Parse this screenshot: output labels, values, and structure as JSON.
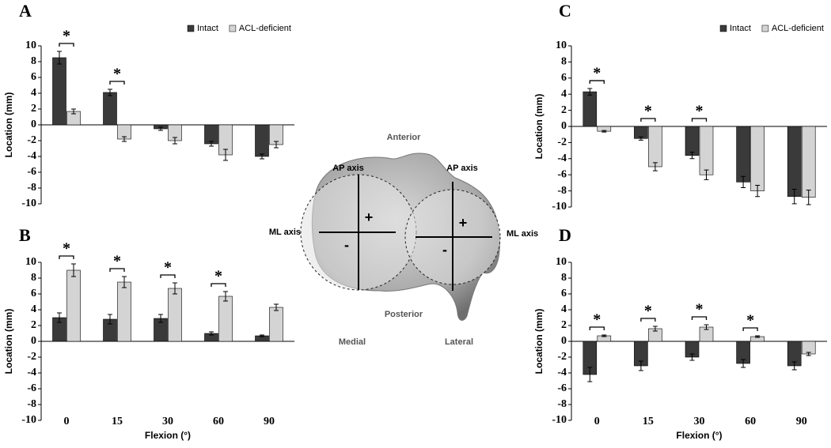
{
  "chart_data": [
    {
      "type": "bar",
      "label": "A",
      "ylabel": "Location (mm)",
      "ylim": [
        -10,
        10
      ],
      "yticks": [
        -10,
        -8,
        -6,
        -4,
        -2,
        0,
        2,
        4,
        6,
        8,
        10
      ],
      "legend": "upper right",
      "series": [
        {
          "name": "Intact",
          "color": "#3a3a3a",
          "values": [
            8.5,
            4.1,
            -0.5,
            -2.4,
            -4.0
          ],
          "errors": [
            0.8,
            0.4,
            0.2,
            0.3,
            0.3
          ]
        },
        {
          "name": "ACL-deficient",
          "color": "#d4d4d4",
          "values": [
            1.7,
            -1.8,
            -2.0,
            -3.8,
            -2.5
          ],
          "errors": [
            0.3,
            0.3,
            0.4,
            0.7,
            0.4
          ]
        }
      ],
      "significance": [
        "*",
        "*",
        null,
        null,
        null
      ]
    },
    {
      "type": "bar",
      "label": "B",
      "ylabel": "Location (mm)",
      "xlabel": "Flexion (°)",
      "categories": [
        "0",
        "15",
        "30",
        "60",
        "90"
      ],
      "ylim": [
        -10,
        10
      ],
      "yticks": [
        -10,
        -8,
        -6,
        -4,
        -2,
        0,
        2,
        4,
        6,
        8,
        10
      ],
      "series": [
        {
          "color": "#3a3a3a",
          "values": [
            3.0,
            2.8,
            2.9,
            1.0,
            0.7
          ],
          "errors": [
            0.6,
            0.6,
            0.5,
            0.2,
            0.1
          ]
        },
        {
          "color": "#d4d4d4",
          "values": [
            9.0,
            7.5,
            6.7,
            5.7,
            4.3
          ],
          "errors": [
            0.8,
            0.7,
            0.7,
            0.6,
            0.4
          ]
        }
      ],
      "significance": [
        "*",
        "*",
        "*",
        "*",
        null
      ]
    },
    {
      "type": "bar",
      "label": "C",
      "ylabel": "Location (mm)",
      "ylim": [
        -10,
        10
      ],
      "yticks": [
        -10,
        -8,
        -6,
        -4,
        -2,
        0,
        2,
        4,
        6,
        8,
        10
      ],
      "legend": "upper right",
      "series": [
        {
          "name": "Intact",
          "color": "#3a3a3a",
          "values": [
            4.3,
            -1.5,
            -3.6,
            -6.9,
            -8.7
          ],
          "errors": [
            0.4,
            0.2,
            0.4,
            0.7,
            0.9
          ]
        },
        {
          "name": "ACL-deficient",
          "color": "#d4d4d4",
          "values": [
            -0.6,
            -5.0,
            -6.0,
            -8.0,
            -8.8
          ],
          "errors": [
            0.1,
            0.5,
            0.6,
            0.7,
            0.9
          ]
        }
      ],
      "significance": [
        "*",
        "*",
        "*",
        null,
        null
      ]
    },
    {
      "type": "bar",
      "label": "D",
      "ylabel": "Location (mm)",
      "xlabel": "Flexion (°)",
      "categories": [
        "0",
        "15",
        "30",
        "60",
        "90"
      ],
      "ylim": [
        -10,
        10
      ],
      "yticks": [
        -10,
        -8,
        -6,
        -4,
        -2,
        0,
        2,
        4,
        6,
        8,
        10
      ],
      "series": [
        {
          "color": "#3a3a3a",
          "values": [
            -4.2,
            -3.1,
            -2.0,
            -2.8,
            -3.1
          ],
          "errors": [
            0.9,
            0.6,
            0.4,
            0.5,
            0.5
          ]
        },
        {
          "color": "#d4d4d4",
          "values": [
            0.7,
            1.6,
            1.8,
            0.6,
            -1.6
          ],
          "errors": [
            0.1,
            0.3,
            0.3,
            0.1,
            0.2
          ]
        }
      ],
      "significance": [
        "*",
        "*",
        "*",
        "*",
        null
      ]
    }
  ],
  "diagram": {
    "anterior": "Anterior",
    "posterior": "Posterior",
    "medial": "Medial",
    "lateral": "Lateral",
    "ap_axis_medial": "AP axis",
    "ap_axis_lateral": "AP axis",
    "ml_axis_medial": "ML axis",
    "ml_axis_lateral": "ML axis",
    "plus_medial": "+",
    "plus_lateral": "+",
    "minus_medial": "-",
    "minus_lateral": "-"
  }
}
